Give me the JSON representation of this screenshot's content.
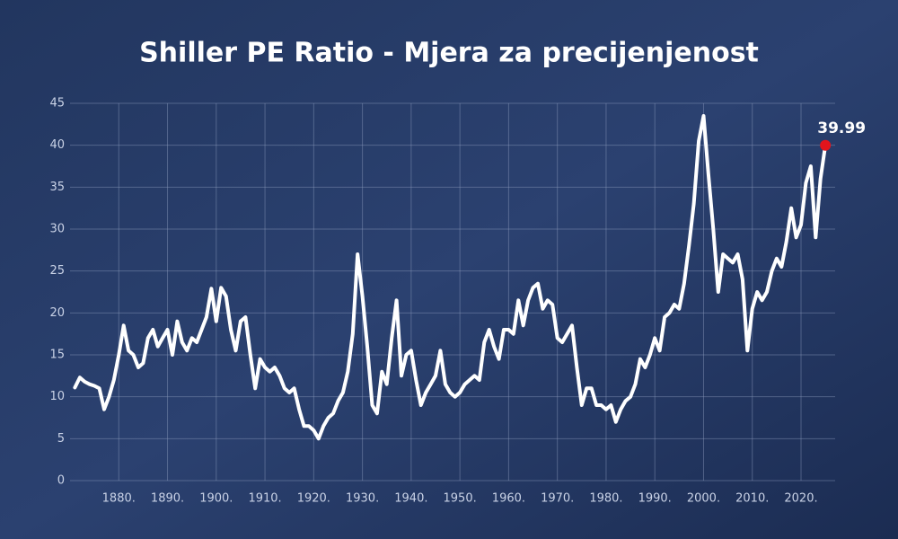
{
  "chart_data": {
    "type": "line",
    "title": "Shiller PE Ratio - Mjera za precijenjenost",
    "x": [
      1871,
      1872,
      1873,
      1874,
      1875,
      1876,
      1877,
      1878,
      1879,
      1880,
      1881,
      1882,
      1883,
      1884,
      1885,
      1886,
      1887,
      1888,
      1889,
      1890,
      1891,
      1892,
      1893,
      1894,
      1895,
      1896,
      1897,
      1898,
      1899,
      1900,
      1901,
      1902,
      1903,
      1904,
      1905,
      1906,
      1907,
      1908,
      1909,
      1910,
      1911,
      1912,
      1913,
      1914,
      1915,
      1916,
      1917,
      1918,
      1919,
      1920,
      1921,
      1922,
      1923,
      1924,
      1925,
      1926,
      1927,
      1928,
      1929,
      1930,
      1931,
      1932,
      1933,
      1934,
      1935,
      1936,
      1937,
      1938,
      1939,
      1940,
      1941,
      1942,
      1943,
      1944,
      1945,
      1946,
      1947,
      1948,
      1949,
      1950,
      1951,
      1952,
      1953,
      1954,
      1955,
      1956,
      1957,
      1958,
      1959,
      1960,
      1961,
      1962,
      1963,
      1964,
      1965,
      1966,
      1967,
      1968,
      1969,
      1970,
      1971,
      1972,
      1973,
      1974,
      1975,
      1976,
      1977,
      1978,
      1979,
      1980,
      1981,
      1982,
      1983,
      1984,
      1985,
      1986,
      1987,
      1988,
      1989,
      1990,
      1991,
      1992,
      1993,
      1994,
      1995,
      1996,
      1997,
      1998,
      1999,
      2000,
      2001,
      2002,
      2003,
      2004,
      2005,
      2006,
      2007,
      2008,
      2009,
      2010,
      2011,
      2012,
      2013,
      2014,
      2015,
      2016,
      2017,
      2018,
      2019,
      2020,
      2021,
      2022,
      2023,
      2024,
      2025
    ],
    "series": [
      {
        "name": "Shiller PE Ratio",
        "color": "#ffffff",
        "values": [
          11.1,
          12.3,
          11.8,
          11.5,
          11.3,
          11.0,
          8.5,
          10.0,
          12.0,
          15.0,
          18.5,
          15.5,
          15.0,
          13.5,
          14.0,
          17.0,
          18.0,
          16.0,
          17.0,
          18.0,
          15.0,
          19.0,
          16.5,
          15.5,
          17.0,
          16.5,
          18.0,
          19.5,
          22.9,
          19.0,
          23.0,
          22.0,
          18.0,
          15.5,
          19.0,
          19.5,
          15.0,
          11.0,
          14.5,
          13.5,
          13.0,
          13.5,
          12.5,
          11.0,
          10.5,
          11.0,
          8.5,
          6.5,
          6.5,
          6.0,
          5.0,
          6.5,
          7.5,
          8.0,
          9.5,
          10.5,
          13.0,
          17.5,
          27.0,
          22.0,
          16.0,
          9.0,
          8.0,
          13.0,
          11.5,
          17.0,
          21.5,
          12.5,
          15.0,
          15.5,
          12.0,
          9.0,
          10.5,
          11.5,
          12.5,
          15.5,
          11.5,
          10.5,
          10.0,
          10.5,
          11.5,
          12.0,
          12.5,
          12.0,
          16.5,
          18.0,
          16.0,
          14.5,
          18.0,
          18.0,
          17.5,
          21.5,
          18.5,
          21.5,
          23.0,
          23.5,
          20.5,
          21.5,
          21.0,
          17.0,
          16.5,
          17.5,
          18.5,
          13.5,
          9.0,
          11.0,
          11.0,
          9.0,
          9.0,
          8.5,
          9.0,
          7.0,
          8.5,
          9.5,
          10.0,
          11.5,
          14.5,
          13.5,
          15.0,
          17.0,
          15.5,
          19.5,
          20.0,
          21.0,
          20.5,
          23.5,
          28.0,
          33.0,
          40.5,
          43.5,
          36.5,
          30.0,
          22.5,
          27.0,
          26.5,
          26.0,
          27.0,
          24.0,
          15.5,
          20.5,
          22.5,
          21.5,
          22.5,
          25.0,
          26.5,
          25.5,
          28.5,
          32.5,
          29.0,
          30.5,
          35.5,
          37.5,
          29.0,
          36.0,
          39.99
        ]
      }
    ],
    "highlight_color": "#e3141c",
    "xlim": [
      1870,
      2027
    ],
    "xticks": [
      {
        "value": 1880,
        "label": "1880."
      },
      {
        "value": 1890,
        "label": "1890."
      },
      {
        "value": 1900,
        "label": "1900."
      },
      {
        "value": 1910,
        "label": "1910."
      },
      {
        "value": 1920,
        "label": "1920."
      },
      {
        "value": 1930,
        "label": "1930."
      },
      {
        "value": 1940,
        "label": "1940."
      },
      {
        "value": 1950,
        "label": "1950."
      },
      {
        "value": 1960,
        "label": "1960."
      },
      {
        "value": 1970,
        "label": "1970."
      },
      {
        "value": 1980,
        "label": "1980."
      },
      {
        "value": 1990,
        "label": "1990."
      },
      {
        "value": 2000,
        "label": "2000."
      },
      {
        "value": 2010,
        "label": "2010."
      },
      {
        "value": 2020,
        "label": "2020."
      }
    ],
    "ylim": [
      0,
      45
    ],
    "yticks": [
      0,
      5,
      10,
      15,
      20,
      25,
      30,
      35,
      40,
      45
    ],
    "grid": true
  }
}
